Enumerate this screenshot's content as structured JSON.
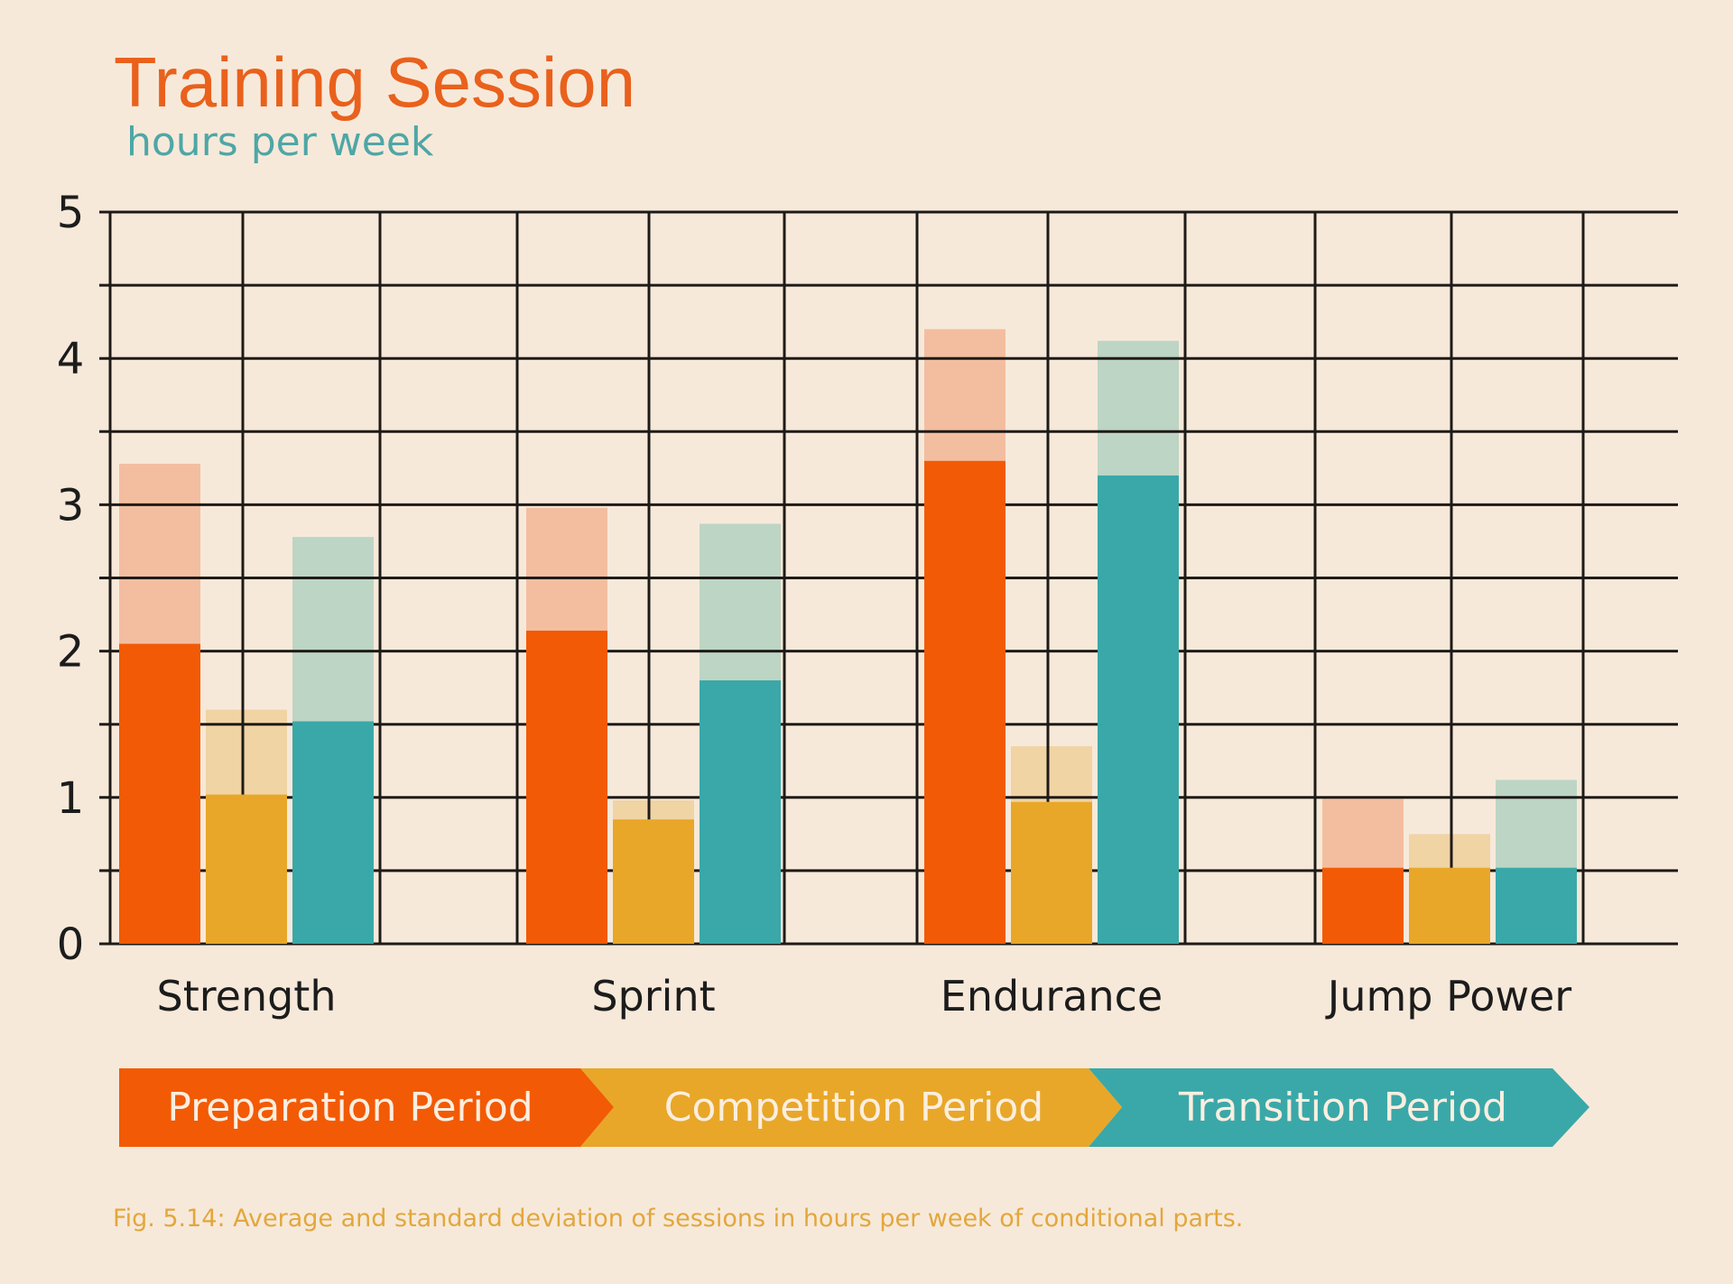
{
  "chart_data": {
    "type": "bar",
    "title": "Training Session",
    "subtitle": "hours per week",
    "xlabel": "",
    "ylabel": "hours per week",
    "ylim": [
      0,
      5
    ],
    "yticks": [
      "0",
      "1",
      "2",
      "3",
      "4",
      "5"
    ],
    "grid": true,
    "categories": [
      "Strength",
      "Sprint",
      "Endurance",
      "Jump Power"
    ],
    "series": [
      {
        "name": "Preparation Period",
        "color": "#f25a05",
        "sd_color": "#f3bea0",
        "values": [
          2.05,
          2.14,
          3.3,
          0.52
        ],
        "sd": [
          1.23,
          0.84,
          0.9,
          0.47
        ]
      },
      {
        "name": "Competition Period",
        "color": "#e8a728",
        "sd_color": "#f0d4a4",
        "values": [
          1.02,
          0.85,
          0.97,
          0.52
        ],
        "sd": [
          0.58,
          0.13,
          0.38,
          0.23
        ]
      },
      {
        "name": "Transition Period",
        "color": "#3aa8a8",
        "sd_color": "#bdd5c4",
        "values": [
          1.52,
          1.8,
          3.2,
          0.52
        ],
        "sd": [
          1.26,
          1.07,
          0.92,
          0.6
        ]
      }
    ],
    "caption": "Fig. 5.14: Average and standard deviation of sessions in hours per week of conditional parts."
  }
}
